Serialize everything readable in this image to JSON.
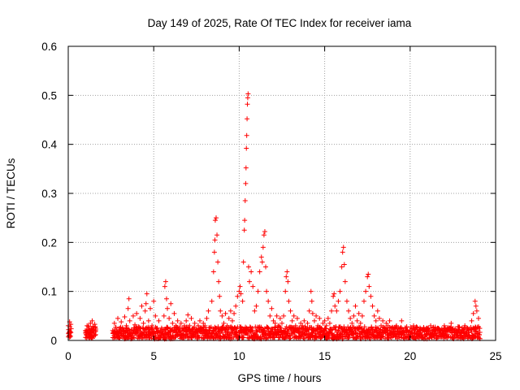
{
  "chart_data": {
    "type": "scatter",
    "title": "Day 149 of 2025, Rate Of TEC Index for receiver iama",
    "xlabel": "GPS time / hours",
    "ylabel": "ROTI / TECUs",
    "xlim": [
      0,
      25
    ],
    "ylim": [
      0,
      0.6
    ],
    "xticks": [
      0,
      5,
      10,
      15,
      20,
      25
    ],
    "yticks": [
      0,
      0.1,
      0.2,
      0.3,
      0.4,
      0.5,
      0.6
    ],
    "xtick_labels": [
      "0",
      "5",
      "10",
      "15",
      "20",
      "25"
    ],
    "ytick_labels": [
      "0",
      "0.1",
      "0.2",
      "0.3",
      "0.4",
      "0.5",
      "0.6"
    ],
    "grid": true,
    "marker": "+",
    "color": "#ff0000",
    "series": [
      {
        "name": "ROTI",
        "points": [
          [
            0.0,
            0.03
          ],
          [
            0.02,
            0.022
          ],
          [
            0.05,
            0.015
          ],
          [
            0.08,
            0.038
          ],
          [
            0.1,
            0.028
          ],
          [
            0.12,
            0.018
          ],
          [
            0.15,
            0.033
          ],
          [
            0.05,
            0.01
          ],
          [
            0.1,
            0.008
          ],
          [
            1.0,
            0.02
          ],
          [
            1.05,
            0.012
          ],
          [
            1.1,
            0.03
          ],
          [
            1.15,
            0.018
          ],
          [
            1.2,
            0.025
          ],
          [
            1.25,
            0.01
          ],
          [
            1.3,
            0.035
          ],
          [
            1.35,
            0.022
          ],
          [
            1.4,
            0.04
          ],
          [
            1.45,
            0.028
          ],
          [
            1.5,
            0.015
          ],
          [
            1.55,
            0.033
          ],
          [
            1.6,
            0.02
          ],
          [
            1.25,
            0.005
          ],
          [
            1.4,
            0.008
          ],
          [
            2.6,
            0.02
          ],
          [
            2.7,
            0.035
          ],
          [
            2.8,
            0.015
          ],
          [
            2.9,
            0.045
          ],
          [
            3.0,
            0.025
          ],
          [
            3.1,
            0.038
          ],
          [
            3.2,
            0.018
          ],
          [
            3.3,
            0.048
          ],
          [
            3.4,
            0.03
          ],
          [
            3.5,
            0.065
          ],
          [
            3.55,
            0.085
          ],
          [
            3.6,
            0.04
          ],
          [
            3.7,
            0.022
          ],
          [
            3.8,
            0.05
          ],
          [
            3.9,
            0.032
          ],
          [
            4.0,
            0.055
          ],
          [
            4.1,
            0.028
          ],
          [
            4.2,
            0.045
          ],
          [
            4.3,
            0.07
          ],
          [
            4.4,
            0.035
          ],
          [
            4.5,
            0.06
          ],
          [
            4.55,
            0.075
          ],
          [
            4.6,
            0.095
          ],
          [
            4.7,
            0.04
          ],
          [
            4.8,
            0.065
          ],
          [
            4.9,
            0.03
          ],
          [
            5.0,
            0.08
          ],
          [
            5.1,
            0.05
          ],
          [
            5.2,
            0.025
          ],
          [
            5.3,
            0.04
          ],
          [
            5.4,
            0.02
          ],
          [
            5.6,
            0.05
          ],
          [
            5.65,
            0.11
          ],
          [
            5.7,
            0.12
          ],
          [
            5.75,
            0.085
          ],
          [
            5.8,
            0.065
          ],
          [
            5.9,
            0.045
          ],
          [
            6.0,
            0.075
          ],
          [
            6.1,
            0.035
          ],
          [
            6.2,
            0.055
          ],
          [
            6.3,
            0.03
          ],
          [
            6.4,
            0.04
          ],
          [
            6.5,
            0.02
          ],
          [
            6.6,
            0.035
          ],
          [
            6.7,
            0.025
          ],
          [
            6.8,
            0.03
          ],
          [
            6.9,
            0.04
          ],
          [
            7.0,
            0.052
          ],
          [
            7.1,
            0.03
          ],
          [
            7.2,
            0.045
          ],
          [
            7.3,
            0.025
          ],
          [
            7.4,
            0.035
          ],
          [
            7.5,
            0.02
          ],
          [
            7.6,
            0.03
          ],
          [
            7.7,
            0.04
          ],
          [
            7.8,
            0.025
          ],
          [
            7.9,
            0.035
          ],
          [
            8.0,
            0.03
          ],
          [
            8.1,
            0.045
          ],
          [
            8.2,
            0.06
          ],
          [
            8.4,
            0.08
          ],
          [
            8.5,
            0.14
          ],
          [
            8.55,
            0.18
          ],
          [
            8.58,
            0.205
          ],
          [
            8.6,
            0.245
          ],
          [
            8.65,
            0.25
          ],
          [
            8.7,
            0.215
          ],
          [
            8.75,
            0.16
          ],
          [
            8.8,
            0.12
          ],
          [
            8.85,
            0.09
          ],
          [
            8.9,
            0.06
          ],
          [
            9.0,
            0.05
          ],
          [
            9.1,
            0.035
          ],
          [
            9.2,
            0.055
          ],
          [
            9.3,
            0.03
          ],
          [
            9.4,
            0.045
          ],
          [
            9.5,
            0.06
          ],
          [
            9.6,
            0.04
          ],
          [
            9.7,
            0.055
          ],
          [
            9.8,
            0.07
          ],
          [
            9.9,
            0.09
          ],
          [
            10.0,
            0.1
          ],
          [
            10.05,
            0.11
          ],
          [
            10.1,
            0.095
          ],
          [
            10.2,
            0.08
          ],
          [
            10.25,
            0.16
          ],
          [
            10.3,
            0.225
          ],
          [
            10.32,
            0.245
          ],
          [
            10.35,
            0.285
          ],
          [
            10.38,
            0.32
          ],
          [
            10.4,
            0.352
          ],
          [
            10.42,
            0.392
          ],
          [
            10.44,
            0.418
          ],
          [
            10.46,
            0.452
          ],
          [
            10.48,
            0.482
          ],
          [
            10.5,
            0.495
          ],
          [
            10.52,
            0.503
          ],
          [
            10.55,
            0.15
          ],
          [
            10.6,
            0.12
          ],
          [
            10.7,
            0.14
          ],
          [
            10.8,
            0.11
          ],
          [
            10.9,
            0.06
          ],
          [
            11.0,
            0.07
          ],
          [
            11.1,
            0.1
          ],
          [
            11.2,
            0.14
          ],
          [
            11.3,
            0.17
          ],
          [
            11.35,
            0.16
          ],
          [
            11.4,
            0.19
          ],
          [
            11.45,
            0.215
          ],
          [
            11.5,
            0.222
          ],
          [
            11.55,
            0.15
          ],
          [
            11.6,
            0.1
          ],
          [
            11.7,
            0.08
          ],
          [
            11.8,
            0.05
          ],
          [
            11.9,
            0.065
          ],
          [
            12.0,
            0.04
          ],
          [
            12.1,
            0.035
          ],
          [
            12.2,
            0.05
          ],
          [
            12.3,
            0.03
          ],
          [
            12.4,
            0.045
          ],
          [
            12.5,
            0.035
          ],
          [
            12.6,
            0.05
          ],
          [
            12.7,
            0.1
          ],
          [
            12.75,
            0.13
          ],
          [
            12.8,
            0.14
          ],
          [
            12.85,
            0.12
          ],
          [
            12.9,
            0.08
          ],
          [
            13.0,
            0.06
          ],
          [
            13.1,
            0.04
          ],
          [
            13.2,
            0.05
          ],
          [
            13.3,
            0.03
          ],
          [
            13.4,
            0.045
          ],
          [
            13.5,
            0.025
          ],
          [
            13.6,
            0.035
          ],
          [
            13.7,
            0.03
          ],
          [
            13.8,
            0.04
          ],
          [
            13.9,
            0.025
          ],
          [
            14.0,
            0.035
          ],
          [
            14.1,
            0.06
          ],
          [
            14.2,
            0.1
          ],
          [
            14.25,
            0.08
          ],
          [
            14.3,
            0.055
          ],
          [
            14.4,
            0.04
          ],
          [
            14.5,
            0.05
          ],
          [
            14.6,
            0.03
          ],
          [
            14.7,
            0.045
          ],
          [
            14.8,
            0.025
          ],
          [
            14.9,
            0.035
          ],
          [
            15.0,
            0.04
          ],
          [
            15.1,
            0.03
          ],
          [
            15.2,
            0.045
          ],
          [
            15.3,
            0.035
          ],
          [
            15.4,
            0.06
          ],
          [
            15.5,
            0.09
          ],
          [
            15.55,
            0.095
          ],
          [
            15.6,
            0.07
          ],
          [
            15.7,
            0.06
          ],
          [
            15.8,
            0.08
          ],
          [
            15.9,
            0.1
          ],
          [
            16.0,
            0.15
          ],
          [
            16.05,
            0.18
          ],
          [
            16.1,
            0.19
          ],
          [
            16.15,
            0.155
          ],
          [
            16.2,
            0.12
          ],
          [
            16.3,
            0.08
          ],
          [
            16.4,
            0.06
          ],
          [
            16.5,
            0.045
          ],
          [
            16.6,
            0.035
          ],
          [
            16.7,
            0.05
          ],
          [
            16.8,
            0.07
          ],
          [
            16.9,
            0.04
          ],
          [
            17.0,
            0.055
          ],
          [
            17.1,
            0.035
          ],
          [
            17.2,
            0.05
          ],
          [
            17.3,
            0.08
          ],
          [
            17.4,
            0.1
          ],
          [
            17.5,
            0.13
          ],
          [
            17.55,
            0.135
          ],
          [
            17.6,
            0.11
          ],
          [
            17.7,
            0.09
          ],
          [
            17.8,
            0.07
          ],
          [
            17.9,
            0.05
          ],
          [
            18.0,
            0.04
          ],
          [
            18.1,
            0.06
          ],
          [
            18.2,
            0.045
          ],
          [
            18.3,
            0.03
          ],
          [
            18.4,
            0.04
          ],
          [
            18.5,
            0.025
          ],
          [
            18.6,
            0.035
          ],
          [
            18.7,
            0.03
          ],
          [
            18.8,
            0.04
          ],
          [
            18.9,
            0.025
          ],
          [
            19.0,
            0.02
          ],
          [
            19.2,
            0.03
          ],
          [
            19.4,
            0.025
          ],
          [
            19.5,
            0.04
          ],
          [
            19.6,
            0.02
          ],
          [
            19.8,
            0.028
          ],
          [
            20.0,
            0.018
          ],
          [
            20.2,
            0.03
          ],
          [
            20.4,
            0.022
          ],
          [
            20.6,
            0.015
          ],
          [
            20.8,
            0.025
          ],
          [
            21.0,
            0.02
          ],
          [
            21.2,
            0.03
          ],
          [
            21.4,
            0.018
          ],
          [
            21.6,
            0.025
          ],
          [
            21.8,
            0.02
          ],
          [
            22.0,
            0.03
          ],
          [
            22.2,
            0.022
          ],
          [
            22.4,
            0.035
          ],
          [
            22.6,
            0.02
          ],
          [
            22.8,
            0.028
          ],
          [
            23.0,
            0.018
          ],
          [
            23.2,
            0.03
          ],
          [
            23.4,
            0.022
          ],
          [
            23.6,
            0.04
          ],
          [
            23.7,
            0.055
          ],
          [
            23.8,
            0.08
          ],
          [
            23.85,
            0.07
          ],
          [
            23.9,
            0.06
          ],
          [
            24.0,
            0.045
          ]
        ],
        "band": {
          "segments": [
            {
              "x": [
                0.0,
                0.15
              ],
              "low": 0.005,
              "high": 0.025
            },
            {
              "x": [
                1.0,
                1.6
              ],
              "low": 0.003,
              "high": 0.03
            },
            {
              "x": [
                2.6,
                24.1
              ],
              "low": 0.003,
              "high": 0.028
            }
          ]
        }
      }
    ]
  }
}
